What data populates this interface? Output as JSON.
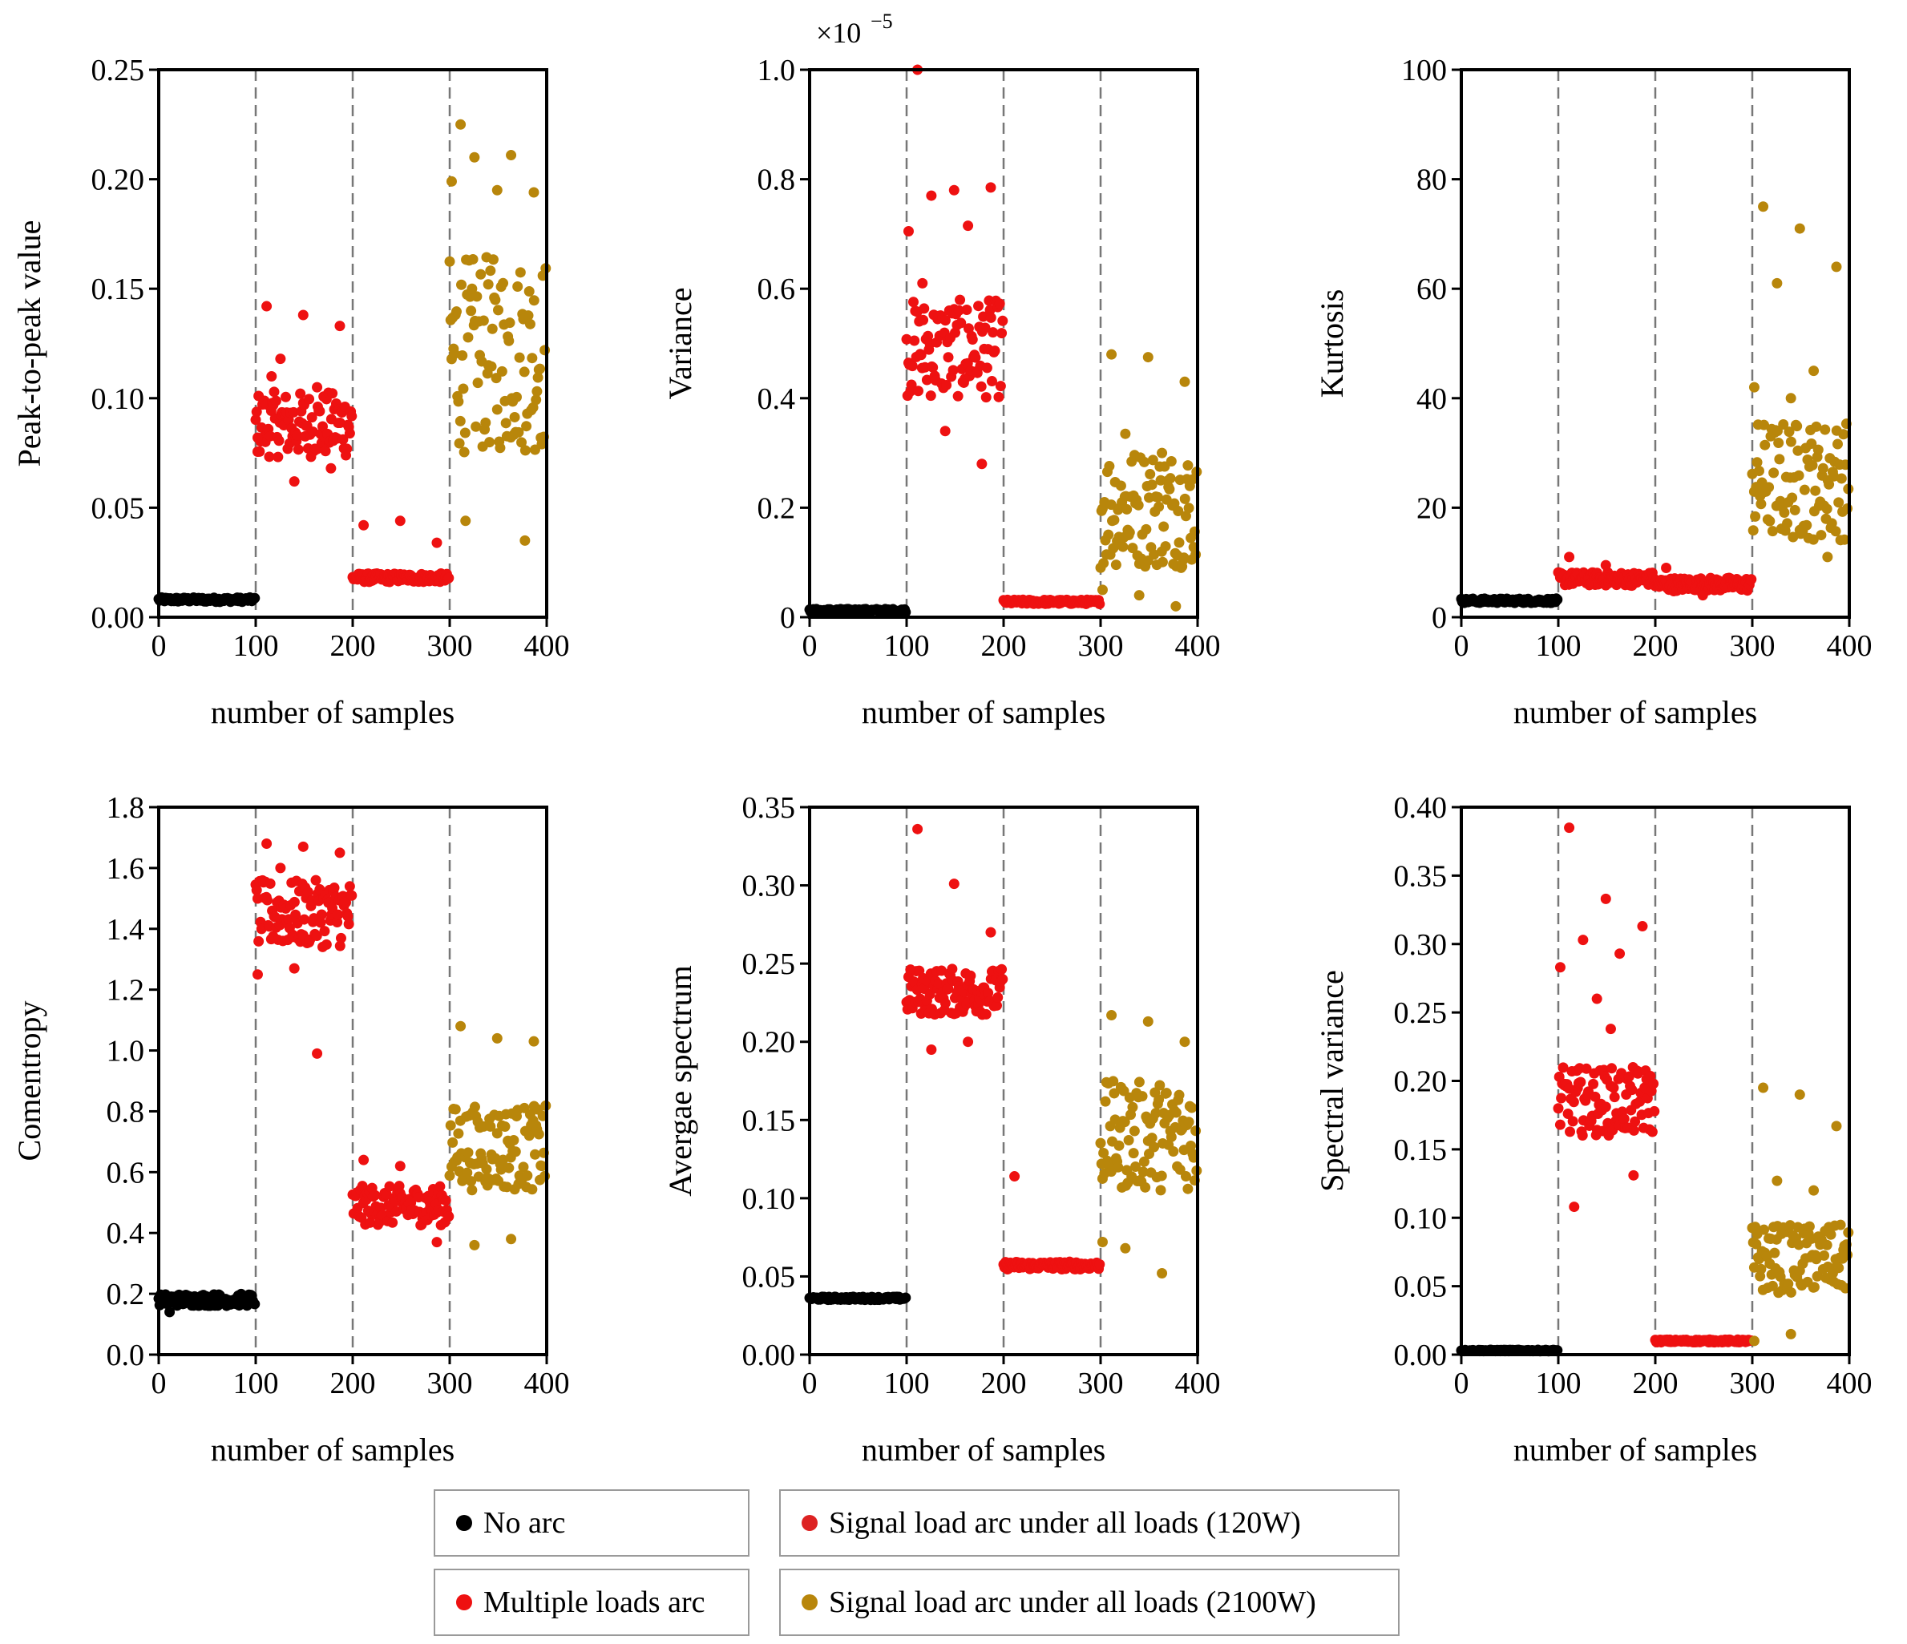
{
  "figure": {
    "legend": [
      "No arc",
      "Multiple loads arc",
      "Signal load arc under all loads (120W)",
      "Signal load arc under all loads (2100W)"
    ]
  },
  "series_colors": {
    "No arc": "#000000",
    "Multiple loads arc": "#ee1111",
    "Signal load arc under all loads (120W)": "#dd2222",
    "Signal load arc under all loads (2100W)": "#b8860b"
  },
  "chart_data": [
    {
      "type": "scatter",
      "title": "",
      "xlabel": "number of samples",
      "ylabel": "Peak-to-peak value",
      "xlim": [
        0,
        400
      ],
      "ylim": [
        0,
        0.25
      ],
      "yticks": [
        "0.00",
        "0.05",
        "0.10",
        "0.15",
        "0.20",
        "0.25"
      ],
      "xticks": [
        "0",
        "100",
        "200",
        "300",
        "400"
      ],
      "ydecimals": 2,
      "multiplier": "",
      "dividers": [
        100,
        200,
        300
      ],
      "series": [
        {
          "name": "No arc",
          "color": "#000000",
          "x_range": [
            0,
            99
          ],
          "y_base": 0.008,
          "y_spread": 0.002,
          "outliers": []
        },
        {
          "name": "Multiple loads arc",
          "color": "#ee1111",
          "x_range": [
            100,
            199
          ],
          "y_base": 0.088,
          "y_spread": 0.03,
          "outliers": [
            0.142,
            0.138,
            0.133,
            0.118,
            0.105,
            0.082,
            0.062,
            0.068,
            0.11
          ]
        },
        {
          "name": "Signal load arc under all loads (120W)",
          "color": "#ee1111",
          "x_range": [
            200,
            299
          ],
          "y_base": 0.018,
          "y_spread": 0.004,
          "outliers": [
            0.042,
            0.044,
            0.034
          ]
        },
        {
          "name": "Signal load arc under all loads (2100W)",
          "color": "#b8860b",
          "x_range": [
            300,
            399
          ],
          "y_base": 0.12,
          "y_spread": 0.09,
          "outliers": [
            0.225,
            0.195,
            0.194,
            0.21,
            0.211,
            0.199,
            0.152,
            0.035,
            0.044
          ]
        }
      ]
    },
    {
      "type": "scatter",
      "title": "",
      "xlabel": "number of samples",
      "ylabel": "Variance",
      "xlim": [
        0,
        400
      ],
      "ylim": [
        0,
        1.0
      ],
      "yticks": [
        "0",
        "0.2",
        "0.4",
        "0.6",
        "0.8",
        "1.0"
      ],
      "xticks": [
        "0",
        "100",
        "200",
        "300",
        "400"
      ],
      "ydecimals": 1,
      "multiplier": "×10",
      "multiplier_exp": "−5",
      "dividers": [
        100,
        200,
        300
      ],
      "series": [
        {
          "name": "No arc",
          "color": "#000000",
          "x_range": [
            0,
            99
          ],
          "y_base": 0.012,
          "y_spread": 0.006,
          "outliers": []
        },
        {
          "name": "Multiple loads arc",
          "color": "#ee1111",
          "x_range": [
            100,
            199
          ],
          "y_base": 0.49,
          "y_spread": 0.18,
          "outliers": [
            1.0,
            0.78,
            0.785,
            0.77,
            0.715,
            0.705,
            0.34,
            0.28,
            0.61
          ]
        },
        {
          "name": "Signal load arc under all loads (120W)",
          "color": "#ee1111",
          "x_range": [
            200,
            299
          ],
          "y_base": 0.028,
          "y_spread": 0.008,
          "outliers": []
        },
        {
          "name": "Signal load arc under all loads (2100W)",
          "color": "#b8860b",
          "x_range": [
            300,
            399
          ],
          "y_base": 0.2,
          "y_spread": 0.22,
          "outliers": [
            0.48,
            0.475,
            0.43,
            0.335,
            0.3,
            0.05,
            0.04,
            0.02
          ]
        }
      ]
    },
    {
      "type": "scatter",
      "title": "",
      "xlabel": "number of samples",
      "ylabel": "Kurtosis",
      "xlim": [
        0,
        400
      ],
      "ylim": [
        0,
        100
      ],
      "yticks": [
        "0",
        "20",
        "40",
        "60",
        "80",
        "100"
      ],
      "xticks": [
        "0",
        "100",
        "200",
        "300",
        "400"
      ],
      "ydecimals": 0,
      "multiplier": "",
      "dividers": [
        100,
        200,
        300
      ],
      "series": [
        {
          "name": "No arc",
          "color": "#000000",
          "x_range": [
            0,
            99
          ],
          "y_base": 3,
          "y_spread": 0.8,
          "outliers": []
        },
        {
          "name": "Multiple loads arc",
          "color": "#ee1111",
          "x_range": [
            100,
            199
          ],
          "y_base": 7,
          "y_spread": 2.5,
          "outliers": [
            11,
            9.5
          ]
        },
        {
          "name": "Signal load arc under all loads (120W)",
          "color": "#ee1111",
          "x_range": [
            200,
            299
          ],
          "y_base": 6,
          "y_spread": 2.5,
          "outliers": [
            9,
            4
          ]
        },
        {
          "name": "Signal load arc under all loads (2100W)",
          "color": "#b8860b",
          "x_range": [
            300,
            399
          ],
          "y_base": 25,
          "y_spread": 22,
          "outliers": [
            75,
            71,
            64,
            61,
            45,
            42,
            40,
            11
          ]
        }
      ]
    },
    {
      "type": "scatter",
      "title": "",
      "xlabel": "number of samples",
      "ylabel": "Comentropy",
      "xlim": [
        0,
        400
      ],
      "ylim": [
        0,
        1.8
      ],
      "yticks": [
        "0.0",
        "0.2",
        "0.4",
        "0.6",
        "0.8",
        "1.0",
        "1.2",
        "1.4",
        "1.6",
        "1.8"
      ],
      "xticks": [
        "0",
        "100",
        "200",
        "300",
        "400"
      ],
      "ydecimals": 1,
      "multiplier": "",
      "dividers": [
        100,
        200,
        300
      ],
      "series": [
        {
          "name": "No arc",
          "color": "#000000",
          "x_range": [
            0,
            99
          ],
          "y_base": 0.18,
          "y_spread": 0.04,
          "outliers": [
            0.14
          ]
        },
        {
          "name": "Multiple loads arc",
          "color": "#ee1111",
          "x_range": [
            100,
            199
          ],
          "y_base": 1.45,
          "y_spread": 0.22,
          "outliers": [
            1.68,
            1.67,
            1.65,
            1.6,
            0.99,
            1.25,
            1.27
          ]
        },
        {
          "name": "Signal load arc under all loads (120W)",
          "color": "#ee1111",
          "x_range": [
            200,
            299
          ],
          "y_base": 0.49,
          "y_spread": 0.13,
          "outliers": [
            0.64,
            0.62,
            0.37
          ]
        },
        {
          "name": "Signal load arc under all loads (2100W)",
          "color": "#b8860b",
          "x_range": [
            300,
            399
          ],
          "y_base": 0.68,
          "y_spread": 0.28,
          "outliers": [
            1.08,
            1.04,
            1.03,
            0.36,
            0.38
          ]
        }
      ]
    },
    {
      "type": "scatter",
      "title": "",
      "xlabel": "number of samples",
      "ylabel": "Avergae spectrum",
      "xlim": [
        0,
        400
      ],
      "ylim": [
        0,
        0.35
      ],
      "yticks": [
        "0.00",
        "0.05",
        "0.10",
        "0.15",
        "0.20",
        "0.25",
        "0.30",
        "0.35"
      ],
      "xticks": [
        "0",
        "100",
        "200",
        "300",
        "400"
      ],
      "ydecimals": 2,
      "multiplier": "",
      "dividers": [
        100,
        200,
        300
      ],
      "series": [
        {
          "name": "No arc",
          "color": "#000000",
          "x_range": [
            0,
            99
          ],
          "y_base": 0.036,
          "y_spread": 0.002,
          "outliers": []
        },
        {
          "name": "Multiple loads arc",
          "color": "#ee1111",
          "x_range": [
            100,
            199
          ],
          "y_base": 0.232,
          "y_spread": 0.03,
          "outliers": [
            0.336,
            0.301,
            0.27,
            0.195,
            0.2
          ]
        },
        {
          "name": "Signal load arc under all loads (120W)",
          "color": "#ee1111",
          "x_range": [
            200,
            299
          ],
          "y_base": 0.057,
          "y_spread": 0.005,
          "outliers": [
            0.114
          ]
        },
        {
          "name": "Signal load arc under all loads (2100W)",
          "color": "#b8860b",
          "x_range": [
            300,
            399
          ],
          "y_base": 0.14,
          "y_spread": 0.07,
          "outliers": [
            0.217,
            0.213,
            0.2,
            0.068,
            0.052,
            0.072
          ]
        }
      ]
    },
    {
      "type": "scatter",
      "title": "",
      "xlabel": "number of samples",
      "ylabel": "Spectral variance",
      "xlim": [
        0,
        400
      ],
      "ylim": [
        0,
        0.4
      ],
      "yticks": [
        "0.00",
        "0.05",
        "0.10",
        "0.15",
        "0.20",
        "0.25",
        "0.30",
        "0.35",
        "0.40"
      ],
      "xticks": [
        "0",
        "100",
        "200",
        "300",
        "400"
      ],
      "ydecimals": 2,
      "multiplier": "",
      "dividers": [
        100,
        200,
        300
      ],
      "series": [
        {
          "name": "No arc",
          "color": "#000000",
          "x_range": [
            0,
            99
          ],
          "y_base": 0.003,
          "y_spread": 0.001,
          "outliers": []
        },
        {
          "name": "Multiple loads arc",
          "color": "#ee1111",
          "x_range": [
            100,
            199
          ],
          "y_base": 0.185,
          "y_spread": 0.05,
          "outliers": [
            0.385,
            0.333,
            0.313,
            0.303,
            0.293,
            0.283,
            0.26,
            0.131,
            0.108,
            0.238
          ]
        },
        {
          "name": "Signal load arc under all loads (120W)",
          "color": "#ee1111",
          "x_range": [
            200,
            299
          ],
          "y_base": 0.01,
          "y_spread": 0.002,
          "outliers": []
        },
        {
          "name": "Signal load arc under all loads (2100W)",
          "color": "#b8860b",
          "x_range": [
            300,
            399
          ],
          "y_base": 0.07,
          "y_spread": 0.05,
          "outliers": [
            0.195,
            0.19,
            0.167,
            0.127,
            0.12,
            0.01,
            0.015
          ]
        }
      ]
    }
  ]
}
